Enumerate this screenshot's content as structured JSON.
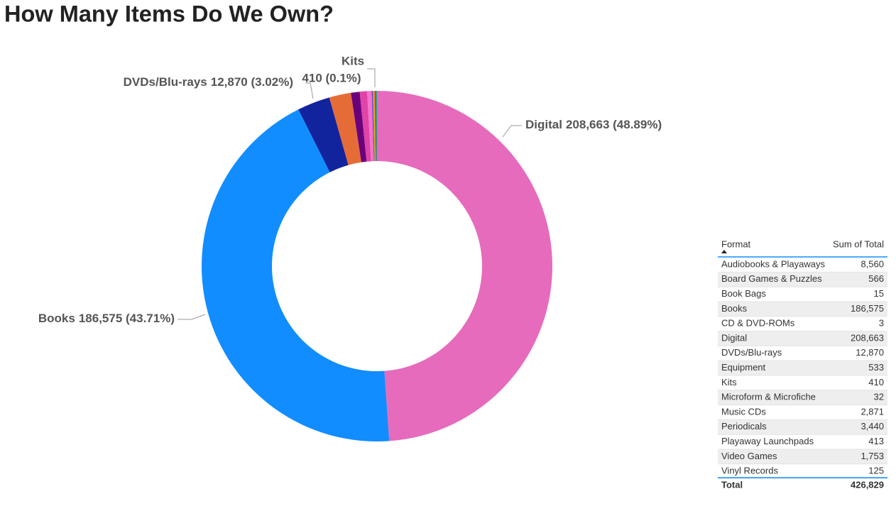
{
  "chart_data": {
    "type": "donut",
    "title": "How Many Items Do We Own?",
    "categories": [
      "Digital",
      "Books",
      "DVDs/Blu-rays",
      "Audiobooks & Playaways",
      "Periodicals",
      "Music CDs",
      "Video Games",
      "Board Games & Puzzles",
      "Equipment",
      "Playaway Launchpads",
      "Kits",
      "Vinyl Records",
      "Microform & Microfiche",
      "Book Bags",
      "CD & DVD-ROMs"
    ],
    "values": [
      208663,
      186575,
      12870,
      8560,
      3440,
      2871,
      1753,
      566,
      533,
      413,
      410,
      125,
      32,
      15,
      3
    ],
    "value_labels": [
      "208,663 (48.89%)",
      "186,575 (43.71%)",
      "12,870 (3.02%)",
      null,
      null,
      null,
      null,
      null,
      null,
      null,
      "410 (0.1%)",
      null,
      null,
      null,
      null
    ],
    "colors": [
      "#E66BBC",
      "#118DFF",
      "#12239E",
      "#E66C37",
      "#6B007B",
      "#E044A7",
      "#F472D0",
      "#744EC2",
      "#D9B300",
      "#D64550",
      "#197278",
      "#1AAB40",
      "#15C6F4",
      "#4092FF",
      "#FFA058"
    ]
  },
  "table": {
    "columns": [
      "Format",
      "Sum of Total"
    ],
    "rows": [
      [
        "Audiobooks & Playaways",
        "8,560"
      ],
      [
        "Board Games & Puzzles",
        "566"
      ],
      [
        "Book Bags",
        "15"
      ],
      [
        "Books",
        "186,575"
      ],
      [
        "CD & DVD-ROMs",
        "3"
      ],
      [
        "Digital",
        "208,663"
      ],
      [
        "DVDs/Blu-rays",
        "12,870"
      ],
      [
        "Equipment",
        "533"
      ],
      [
        "Kits",
        "410"
      ],
      [
        "Microform & Microfiche",
        "32"
      ],
      [
        "Music CDs",
        "2,871"
      ],
      [
        "Periodicals",
        "3,440"
      ],
      [
        "Playaway Launchpads",
        "413"
      ],
      [
        "Video Games",
        "1,753"
      ],
      [
        "Vinyl Records",
        "125"
      ]
    ],
    "total": [
      "Total",
      "426,829"
    ]
  }
}
